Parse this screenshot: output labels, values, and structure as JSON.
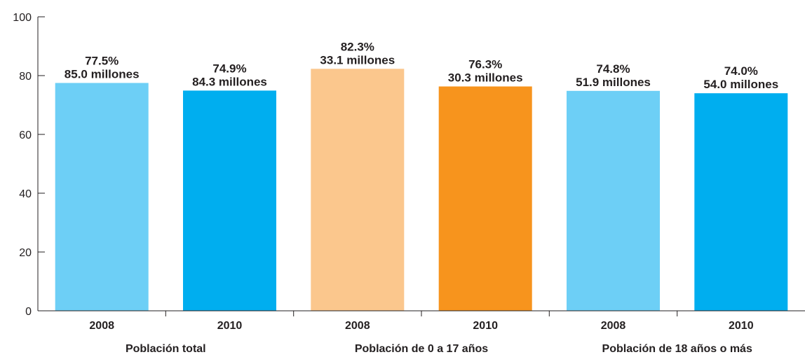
{
  "chart_data": {
    "type": "bar",
    "title": "",
    "xlabel": "",
    "ylabel": "",
    "ylim": [
      0,
      100
    ],
    "yticks": [
      0,
      20,
      40,
      60,
      80,
      100
    ],
    "grid": false,
    "groups": [
      {
        "label": "Población total",
        "bars": [
          {
            "year": "2008",
            "value": 77.5,
            "label_pct": "77.5%",
            "label_count": "85.0 millones",
            "color": "#6dcff6"
          },
          {
            "year": "2010",
            "value": 74.9,
            "label_pct": "74.9%",
            "label_count": "84.3 millones",
            "color": "#00aeef"
          }
        ]
      },
      {
        "label": "Población de 0 a 17 años",
        "bars": [
          {
            "year": "2008",
            "value": 82.3,
            "label_pct": "82.3%",
            "label_count": "33.1 millones",
            "color": "#fbc78d"
          },
          {
            "year": "2010",
            "value": 76.3,
            "label_pct": "76.3%",
            "label_count": "30.3 millones",
            "color": "#f7941d"
          }
        ]
      },
      {
        "label": "Población de 18 años o más",
        "bars": [
          {
            "year": "2008",
            "value": 74.8,
            "label_pct": "74.8%",
            "label_count": "51.9 millones",
            "color": "#6dcff6"
          },
          {
            "year": "2010",
            "value": 74.0,
            "label_pct": "74.0%",
            "label_count": "54.0 millones",
            "color": "#00aeef"
          }
        ]
      }
    ]
  }
}
